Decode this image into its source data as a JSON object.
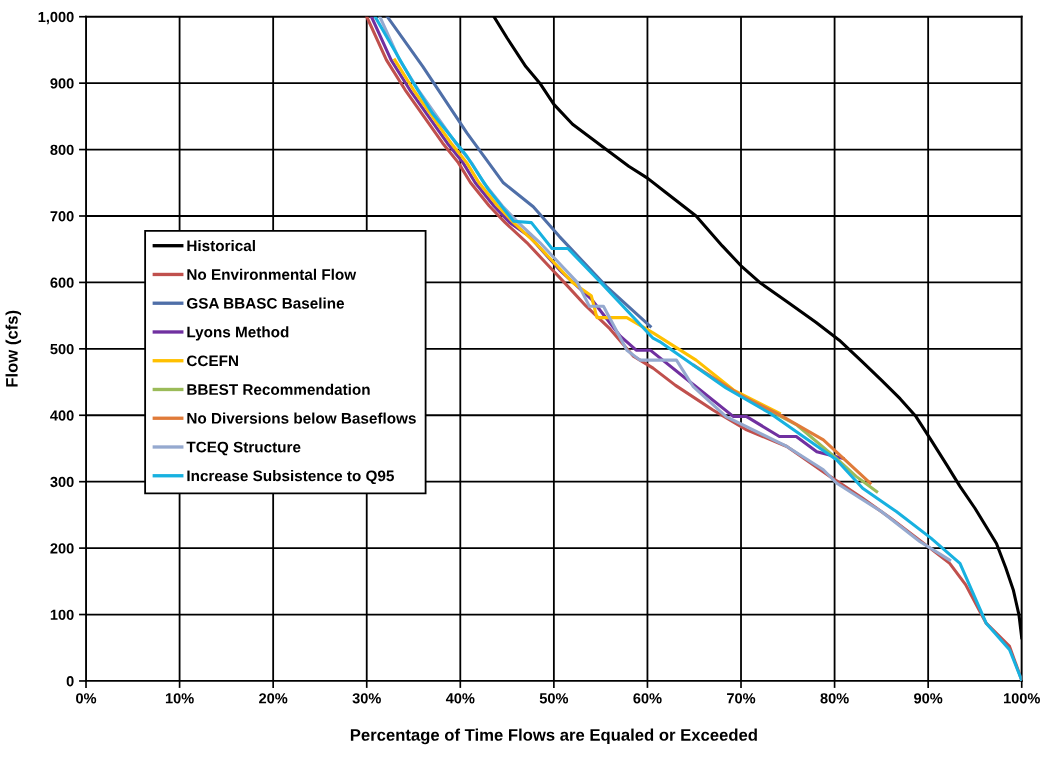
{
  "chart_data": {
    "type": "line",
    "xlabel": "Percentage of Time Flows are Equaled or Exceeded",
    "ylabel": "Flow (cfs)",
    "xlim": [
      0,
      100
    ],
    "xticks": [
      {
        "value": 0,
        "label": "0%"
      },
      {
        "value": 10,
        "label": "10%"
      },
      {
        "value": 20,
        "label": "20%"
      },
      {
        "value": 30,
        "label": "30%"
      },
      {
        "value": 40,
        "label": "40%"
      },
      {
        "value": 50,
        "label": "50%"
      },
      {
        "value": 60,
        "label": "60%"
      },
      {
        "value": 70,
        "label": "70%"
      },
      {
        "value": 80,
        "label": "80%"
      },
      {
        "value": 90,
        "label": "90%"
      },
      {
        "value": 100,
        "label": "100%"
      }
    ],
    "ylim": [
      0,
      1000
    ],
    "yticks": [
      0,
      100,
      200,
      300,
      400,
      500,
      600,
      700,
      800,
      900,
      {
        "value": 1000,
        "label": "1,000"
      }
    ],
    "grid": true,
    "legend": "left",
    "marker": "none",
    "line_style": "solid",
    "series": [
      {
        "name": "Historical",
        "color": "#000000",
        "x": [
          43.6,
          45,
          47,
          48.5,
          50,
          52,
          55.6,
          58,
          60,
          62,
          65.2,
          68,
          70,
          72,
          75,
          78,
          80.5,
          83,
          85,
          87,
          88.7,
          90.3,
          92,
          93.4,
          95,
          97.3,
          98.3,
          99.1,
          99.7,
          100
        ],
        "values": [
          1000,
          968,
          925,
          900,
          868,
          838,
          800,
          775,
          757,
          735,
          700,
          655,
          625,
          600,
          570,
          540,
          513,
          480,
          453,
          425,
          398,
          363,
          325,
          293,
          260,
          207,
          170,
          137,
          100,
          65
        ]
      },
      {
        "name": "No Environmental Flow",
        "color": "#c0504d",
        "x": [
          30,
          32.1,
          34.1,
          36.1,
          38.1,
          39.8,
          41.1,
          43.1,
          44.8,
          47.1,
          49.1,
          51.1,
          53.4,
          56,
          58.5,
          60.6,
          63,
          67,
          70.6,
          74.9,
          79.5,
          83,
          86,
          90.2,
          92.3,
          94,
          96.2,
          98.7,
          100
        ],
        "values": [
          1000,
          935,
          890,
          850,
          810,
          780,
          750,
          715,
          690,
          660,
          630,
          600,
          565,
          530,
          489,
          471,
          445,
          408,
          378,
          353,
          308,
          275,
          245,
          200,
          177,
          145,
          87,
          52,
          1
        ]
      },
      {
        "name": "GSA BBASC Baseline",
        "color": "#4f6fa8",
        "x": [
          32.2,
          36,
          40.7,
          44.6,
          47.8,
          50.6,
          55.6,
          60.3
        ],
        "values": [
          1000,
          925,
          825,
          750,
          714,
          669,
          594,
          534
        ]
      },
      {
        "name": "Lyons Method",
        "color": "#7030a0",
        "x": [
          30.5,
          32.6,
          34.6,
          36.6,
          38.6,
          40.3,
          41.6,
          43.6,
          45.3,
          47.4,
          50.6,
          54,
          57.1,
          58.8,
          60.3,
          65.2,
          69.2,
          70.6,
          74.1,
          75.9,
          78.1,
          80.9
        ],
        "values": [
          1000,
          935,
          890,
          850,
          810,
          780,
          750,
          715,
          690,
          669,
          619,
          575,
          519,
          498,
          498,
          443,
          398,
          398,
          368,
          368,
          345,
          335
        ]
      },
      {
        "name": "CCEFN",
        "color": "#ffc000",
        "x": [
          33,
          35,
          37,
          39,
          40.7,
          42,
          44,
          45.7,
          48,
          50,
          52,
          54,
          54.6,
          57.8,
          60.6,
          65.2,
          69.2,
          74.1
        ],
        "values": [
          935,
          890,
          850,
          810,
          780,
          750,
          715,
          690,
          660,
          630,
          600,
          580,
          547,
          547,
          524,
          483,
          438,
          403
        ]
      },
      {
        "name": "BBEST Recommendation",
        "color": "#9bbb59",
        "x": [
          72,
          76,
          80.2,
          82.3,
          84.5
        ],
        "values": [
          415,
          385,
          335,
          308,
          285
        ]
      },
      {
        "name": "No Diversions below Baseflows",
        "color": "#e07b39",
        "x": [
          65,
          70,
          74.1,
          78.8,
          83.8
        ],
        "values": [
          475,
          430,
          401,
          363,
          298
        ]
      },
      {
        "name": "TCEQ Structure",
        "color": "#95a9cf",
        "x": [
          31.4,
          33.5,
          35.5,
          37.5,
          39.5,
          41.2,
          42.5,
          44.5,
          46.2,
          48.5,
          50.5,
          52.5,
          53.8,
          55.3,
          57.8,
          59.2,
          63.1,
          64.9,
          68.4,
          74.9,
          78.8,
          80.2,
          85,
          89.1,
          92.3
        ],
        "values": [
          1000,
          935,
          890,
          850,
          810,
          780,
          750,
          715,
          690,
          660,
          630,
          600,
          564,
          564,
          498,
          483,
          483,
          443,
          398,
          353,
          318,
          298,
          255,
          210,
          182
        ]
      },
      {
        "name": "Increase Subsistence to Q95",
        "color": "#17b1e0",
        "x": [
          30.9,
          35,
          37,
          40.7,
          43,
          45.7,
          47.6,
          49.8,
          51.5,
          55,
          60.6,
          61.3,
          68.4,
          73.1,
          80.2,
          83,
          86.6,
          90.3,
          93.4,
          96.2,
          98.7,
          100
        ],
        "values": [
          1000,
          900,
          855,
          790,
          740,
          692,
          690,
          651,
          651,
          600,
          516,
          511,
          441,
          403,
          333,
          290,
          255,
          215,
          177,
          87,
          47,
          1
        ]
      }
    ]
  }
}
